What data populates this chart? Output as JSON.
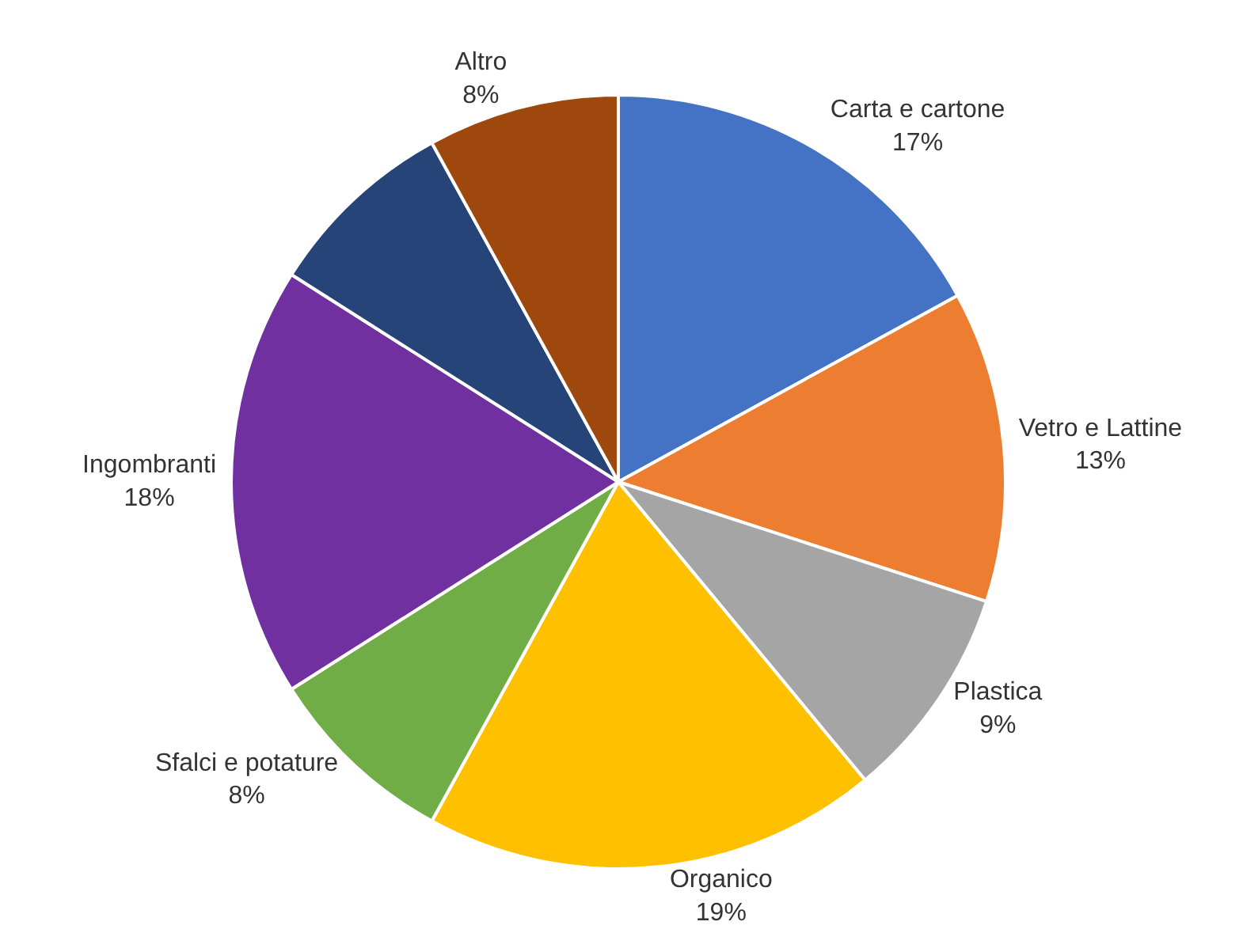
{
  "chart_data": {
    "type": "pie",
    "categories": [
      "Carta e cartone",
      "Vetro e Lattine",
      "Plastica",
      "Organico",
      "Sfalci e potature",
      "Ingombranti",
      null,
      "Altro"
    ],
    "values": [
      17,
      13,
      9,
      19,
      8,
      18,
      8,
      8
    ],
    "value_labels": [
      "17%",
      "13%",
      "9%",
      "19%",
      "8%",
      "18%",
      null,
      "8%"
    ],
    "colors": [
      "#4472c4",
      "#ed7d31",
      "#a5a5a5",
      "#ffc000",
      "#70ad47",
      "#7030a0",
      "#264478",
      "#9e480e"
    ]
  }
}
